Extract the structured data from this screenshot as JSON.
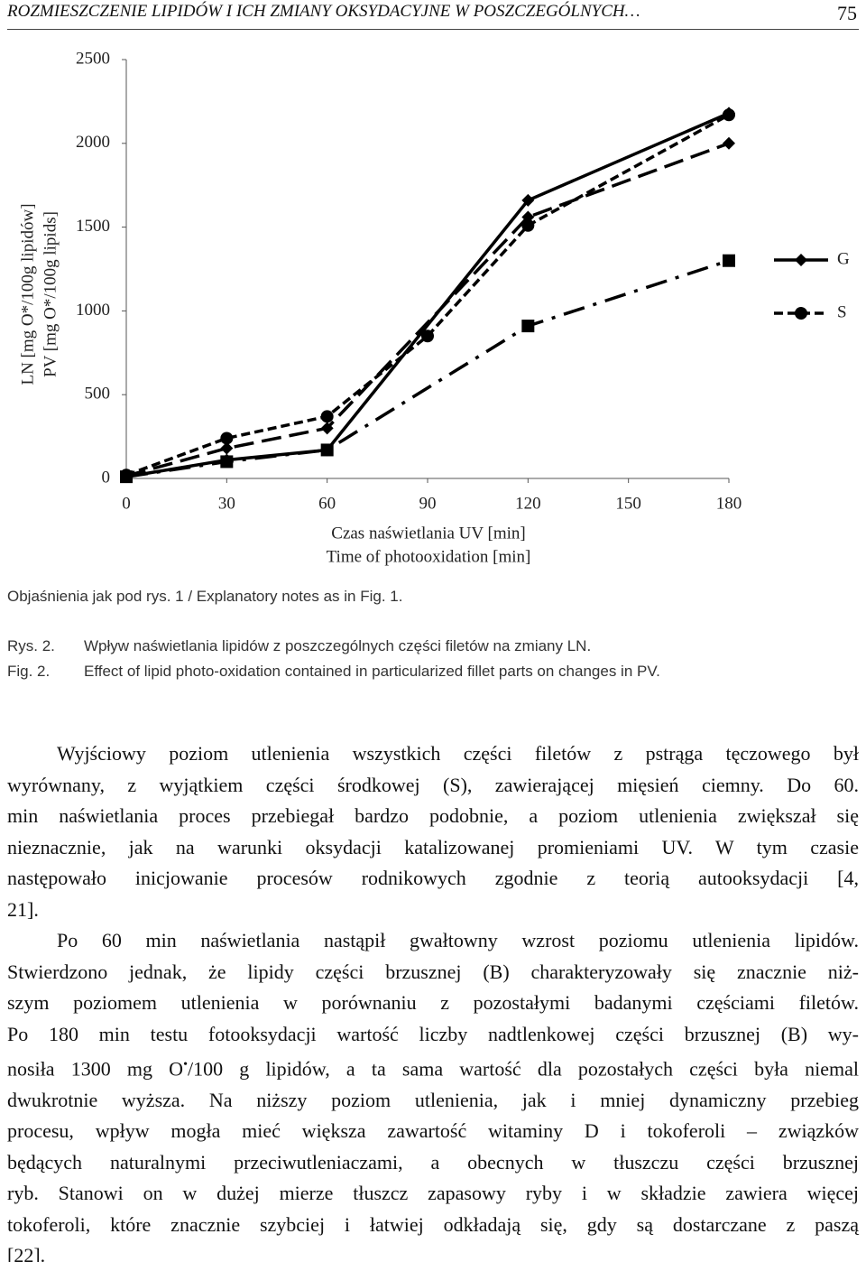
{
  "header": {
    "title": "ROZMIESZCZENIE LIPIDÓW I ICH ZMIANY OKSYDACYJNE W POSZCZEGÓLNYCH…",
    "page": "75"
  },
  "chart_data": {
    "type": "line",
    "y_label": [
      "LN [mg O*/100g lipidów]",
      "PV [mg O*/100g lipids]"
    ],
    "x_label": [
      "Czas naświetlania UV [min]",
      "Time of photooxidation [min]"
    ],
    "xlim": [
      0,
      180
    ],
    "xticks": [
      0,
      30,
      60,
      90,
      120,
      150,
      180
    ],
    "ylim": [
      0,
      2500
    ],
    "yticks": [
      0,
      500,
      1000,
      1500,
      2000,
      2500
    ],
    "grid": false,
    "legend": "right",
    "series": [
      {
        "name": "G",
        "color": "#000000",
        "marker": "diamond",
        "dash": "solid",
        "x": [
          0,
          30,
          60,
          120,
          180
        ],
        "values": [
          10,
          110,
          170,
          1660,
          2180
        ]
      },
      {
        "name": "S",
        "color": "#000000",
        "marker": "circle",
        "dash": "short",
        "x": [
          0,
          30,
          60,
          90,
          120,
          180
        ],
        "values": [
          20,
          240,
          370,
          850,
          1510,
          2170
        ]
      },
      {
        "color": "#000000",
        "marker": "diamond",
        "dash": "long",
        "x": [
          0,
          30,
          60,
          120,
          180
        ],
        "values": [
          15,
          180,
          300,
          1560,
          2000
        ]
      },
      {
        "color": "#000000",
        "marker": "square",
        "dash": "dashdot",
        "x": [
          0,
          30,
          60,
          120,
          180
        ],
        "values": [
          10,
          100,
          170,
          910,
          1300
        ]
      }
    ]
  },
  "notes": "Objaśnienia jak pod rys. 1 / Explanatory notes as in Fig. 1.",
  "captions": [
    {
      "label": "Rys. 2.",
      "text": "Wpływ naświetlania lipidów z poszczególnych części filetów na zmiany LN."
    },
    {
      "label": "Fig. 2.",
      "text": "Effect of lipid photo-oxidation contained in particularized fillet parts on changes in PV."
    }
  ],
  "paragraphs": [
    [
      "Wyjściowy poziom utlenienia wszystkich części filetów z pstrąga tęczowego był",
      "wyrównany, z wyjątkiem części środkowej (S), zawierającej mięsień ciemny. Do 60.",
      "min naświetlania proces przebiegał bardzo podobnie, a poziom utlenienia zwiększał się",
      "nieznacznie, jak na warunki oksydacji katalizowanej promieniami UV. W tym czasie",
      "następowało inicjowanie procesów rodnikowych zgodnie z teorią autooksydacji [4,",
      "21]."
    ],
    [
      "Po 60 min naświetlania nastąpił gwałtowny wzrost poziomu utlenienia lipidów.",
      "Stwierdzono jednak, że lipidy części brzusznej (B) charakteryzowały się znacznie niż-",
      "szym poziomem utlenienia w porównaniu z pozostałymi badanymi częściami filetów.",
      "Po 180 min testu fotooksydacji wartość liczby nadtlenkowej części brzusznej (B) wy-",
      {
        "parts": [
          "nosiła 1300 mg O",
          "•",
          "/100 g lipidów, a ta sama wartość dla pozostałych części była niemal"
        ]
      },
      "dwukrotnie wyższa. Na niższy poziom utlenienia, jak i mniej dynamiczny przebieg",
      "procesu, wpływ mogła mieć większa zawartość witaminy D i tokoferoli – związków",
      "będących naturalnymi przeciwutleniaczami, a obecnych w tłuszczu części brzusznej",
      "ryb. Stanowi on w dużej mierze tłuszcz zapasowy ryby i w składzie zawiera więcej",
      "tokoferoli, które znacznie szybciej i łatwiej odkładają się, gdy są dostarczane z paszą",
      "[22]."
    ]
  ]
}
